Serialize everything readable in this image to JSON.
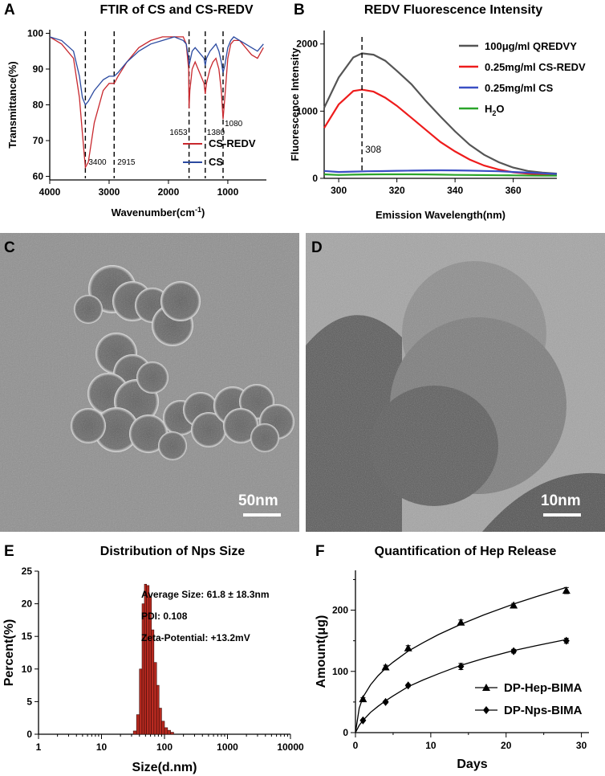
{
  "panels": {
    "A": {
      "letter": "A",
      "title": "FTIR of CS and CS-REDV"
    },
    "B": {
      "letter": "B",
      "title": "REDV Fluorescence Intensity"
    },
    "C": {
      "letter": "C",
      "scale_label": "50nm"
    },
    "D": {
      "letter": "D",
      "scale_label": "10nm"
    },
    "E": {
      "letter": "E",
      "title": "Distribution of Nps Size"
    },
    "F": {
      "letter": "F",
      "title": "Quantification of Hep Release"
    }
  },
  "colors": {
    "red": "#c8282e",
    "blue": "#2b4aa0",
    "gray": "#555555",
    "red_bright": "#ee1c1c",
    "blue_bright": "#3a4fc4",
    "green": "#2aa52a",
    "bar": "#b82a20"
  },
  "chart_data": [
    {
      "id": "A",
      "type": "line",
      "title": "FTIR of CS and CS-REDV",
      "xlabel": "Wavenumber(cm",
      "xlabel_sup": "-1",
      "xlabel_close": ")",
      "ylabel": "Transmittance(%)",
      "xlim": [
        4000,
        350
      ],
      "ylim": [
        59,
        101
      ],
      "xticks": [
        4000,
        3000,
        2000,
        1000
      ],
      "yticks": [
        60,
        70,
        80,
        90,
        100
      ],
      "series": [
        {
          "name": "CS-REDV",
          "x": [
            4000,
            3800,
            3600,
            3500,
            3450,
            3400,
            3350,
            3250,
            3100,
            3000,
            2915,
            2850,
            2700,
            2500,
            2300,
            2100,
            1900,
            1750,
            1700,
            1660,
            1653,
            1640,
            1600,
            1550,
            1500,
            1450,
            1400,
            1380,
            1360,
            1300,
            1250,
            1200,
            1150,
            1110,
            1080,
            1050,
            1000,
            950,
            900,
            800,
            700,
            600,
            500,
            400
          ],
          "y": [
            99,
            97,
            93,
            82,
            72,
            62.5,
            64,
            75,
            84,
            86,
            86,
            88,
            92,
            96,
            98,
            99,
            99,
            99,
            97,
            90,
            79,
            84,
            90,
            92,
            90,
            88,
            86,
            83,
            86,
            90,
            92,
            93,
            90,
            84,
            76,
            82,
            93,
            97,
            98,
            98,
            96,
            94,
            93,
            96
          ]
        },
        {
          "name": "CS",
          "x": [
            4000,
            3800,
            3600,
            3500,
            3450,
            3400,
            3350,
            3250,
            3100,
            3000,
            2915,
            2850,
            2700,
            2500,
            2300,
            2100,
            1900,
            1750,
            1700,
            1660,
            1653,
            1640,
            1600,
            1550,
            1500,
            1450,
            1400,
            1380,
            1360,
            1300,
            1250,
            1200,
            1150,
            1110,
            1080,
            1050,
            1000,
            950,
            900,
            800,
            700,
            600,
            500,
            400
          ],
          "y": [
            99,
            98,
            95,
            88,
            82,
            80,
            81,
            84,
            87,
            88,
            88,
            89,
            92,
            95,
            97,
            98,
            99,
            98,
            97,
            93,
            91,
            92,
            95,
            96,
            95,
            94,
            93,
            91,
            93,
            95,
            96,
            97,
            95,
            92,
            89,
            91,
            96,
            98,
            99,
            98,
            97,
            96,
            95,
            97
          ]
        }
      ],
      "legend": "bottom-right",
      "annotations": [
        {
          "x": 3400,
          "label": "3400"
        },
        {
          "x": 2915,
          "label": "2915"
        },
        {
          "x": 1653,
          "label": "1653"
        },
        {
          "x": 1380,
          "label": "1380"
        },
        {
          "x": 1080,
          "label": "1080"
        }
      ]
    },
    {
      "id": "B",
      "type": "line",
      "title": "REDV Fluorescence Intensity",
      "xlabel": "Emission Wavelength(nm)",
      "ylabel": "Fluorescence Intensity",
      "xlim": [
        295,
        375
      ],
      "ylim": [
        0,
        2200
      ],
      "xticks": [
        300,
        320,
        340,
        360
      ],
      "yticks": [
        0,
        1000,
        2000
      ],
      "series": [
        {
          "name": "100μg/ml QREDVY",
          "x": [
            295,
            300,
            305,
            308,
            312,
            316,
            320,
            325,
            330,
            335,
            340,
            345,
            350,
            355,
            360,
            365,
            370,
            375
          ],
          "y": [
            1050,
            1500,
            1800,
            1860,
            1840,
            1750,
            1600,
            1400,
            1150,
            920,
            700,
            500,
            350,
            240,
            160,
            110,
            85,
            70
          ]
        },
        {
          "name": "0.25mg/ml CS-REDV",
          "x": [
            295,
            300,
            305,
            308,
            312,
            316,
            320,
            325,
            330,
            335,
            340,
            345,
            350,
            355,
            360,
            365,
            370,
            375
          ],
          "y": [
            750,
            1100,
            1300,
            1320,
            1290,
            1200,
            1080,
            900,
            720,
            540,
            400,
            280,
            190,
            130,
            90,
            70,
            60,
            55
          ]
        },
        {
          "name": "0.25mg/ml CS",
          "x": [
            295,
            300,
            305,
            310,
            315,
            320,
            325,
            330,
            335,
            340,
            345,
            350,
            355,
            360,
            365,
            370,
            375
          ],
          "y": [
            110,
            95,
            100,
            105,
            108,
            112,
            115,
            118,
            120,
            118,
            115,
            110,
            105,
            95,
            85,
            75,
            65
          ]
        },
        {
          "name": "H",
          "name_sub": "2",
          "name_end": "O",
          "x": [
            295,
            300,
            305,
            310,
            315,
            320,
            325,
            330,
            335,
            340,
            345,
            350,
            355,
            360,
            365,
            370,
            375
          ],
          "y": [
            60,
            50,
            55,
            58,
            60,
            60,
            60,
            58,
            55,
            52,
            50,
            48,
            46,
            44,
            42,
            40,
            40
          ]
        }
      ],
      "legend": "top-right",
      "annotations": [
        {
          "x": 308,
          "label": "308"
        }
      ]
    },
    {
      "id": "E",
      "type": "bar",
      "title": "Distribution of Nps Size",
      "xlabel": "Size(d.nm)",
      "ylabel": "Percent(%)",
      "xscale": "log",
      "xlim": [
        1,
        10000
      ],
      "ylim": [
        0,
        25
      ],
      "xticks": [
        1,
        10,
        100,
        1000,
        10000
      ],
      "xtick_labels": [
        "1",
        "10",
        "100",
        "1000",
        "10000"
      ],
      "yticks": [
        0,
        5,
        10,
        15,
        20,
        25
      ],
      "bins": [
        {
          "lo": 32,
          "hi": 36,
          "v": 0.5
        },
        {
          "lo": 36,
          "hi": 40,
          "v": 3
        },
        {
          "lo": 40,
          "hi": 44,
          "v": 10
        },
        {
          "lo": 44,
          "hi": 48,
          "v": 20
        },
        {
          "lo": 48,
          "hi": 52,
          "v": 23
        },
        {
          "lo": 52,
          "hi": 57,
          "v": 22.8
        },
        {
          "lo": 57,
          "hi": 62,
          "v": 21
        },
        {
          "lo": 62,
          "hi": 68,
          "v": 16
        },
        {
          "lo": 68,
          "hi": 75,
          "v": 11
        },
        {
          "lo": 75,
          "hi": 82,
          "v": 7.5
        },
        {
          "lo": 82,
          "hi": 90,
          "v": 4
        },
        {
          "lo": 90,
          "hi": 100,
          "v": 2
        },
        {
          "lo": 100,
          "hi": 112,
          "v": 1
        },
        {
          "lo": 112,
          "hi": 125,
          "v": 0.6
        },
        {
          "lo": 125,
          "hi": 140,
          "v": 0.3
        }
      ],
      "annotations": [
        "Average Size: 61.8 ± 18.3nm",
        "PDI: 0.108",
        "Zeta-Potential: +13.2mV"
      ]
    },
    {
      "id": "F",
      "type": "line",
      "title": "Quantification of Hep Release",
      "xlabel": "Days",
      "ylabel": "Amount(μg)",
      "xlim": [
        0,
        31
      ],
      "ylim": [
        0,
        265
      ],
      "xticks": [
        0,
        10,
        20,
        30
      ],
      "yticks": [
        0,
        100,
        200
      ],
      "series": [
        {
          "name": "DP-Hep-BIMA",
          "marker": "triangle",
          "x": [
            1,
            4,
            7,
            14,
            21,
            28
          ],
          "y": [
            55,
            107,
            138,
            180,
            208,
            232
          ],
          "err": [
            2,
            3,
            4,
            4,
            3,
            5
          ],
          "fit_x": [
            0,
            0.5,
            1,
            2,
            3,
            4,
            5,
            7,
            9,
            11,
            14,
            17,
            21,
            24,
            28
          ],
          "fit_y": [
            0,
            40,
            58,
            78,
            93,
            105,
            115,
            133,
            147,
            160,
            177,
            192,
            210,
            222,
            237
          ]
        },
        {
          "name": "DP-Nps-BIMA",
          "marker": "diamond",
          "x": [
            1,
            4,
            7,
            14,
            21,
            28
          ],
          "y": [
            20,
            50,
            77,
            108,
            133,
            150
          ],
          "err": [
            1,
            2,
            2,
            5,
            3,
            4
          ],
          "fit_x": [
            0,
            0.5,
            1,
            2,
            3,
            4,
            5,
            7,
            9,
            11,
            14,
            17,
            21,
            24,
            28
          ],
          "fit_y": [
            0,
            12,
            20,
            33,
            43,
            52,
            60,
            75,
            86,
            96,
            110,
            121,
            134,
            142,
            152
          ]
        }
      ],
      "legend": "bottom-right"
    }
  ]
}
